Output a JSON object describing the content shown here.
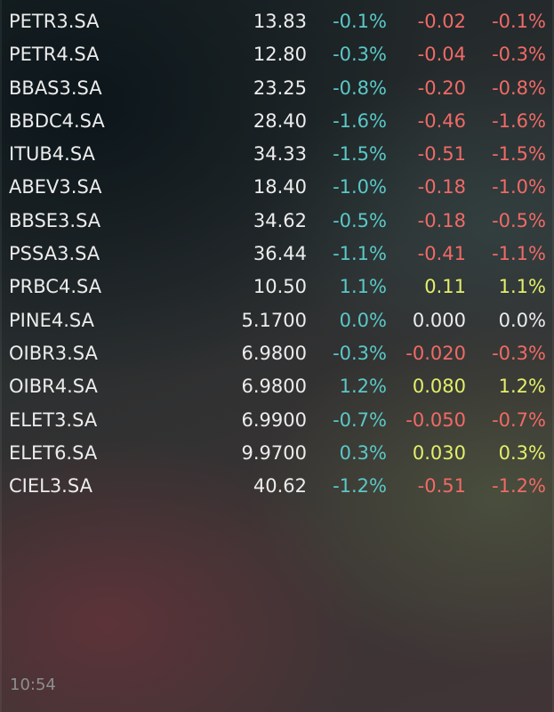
{
  "colors": {
    "teal": "#5ac8c8",
    "red": "#f06a66",
    "yellow": "#e3ef6a",
    "white": "#ececec"
  },
  "rows": [
    {
      "symbol": "PETR3.SA",
      "price": "13.83",
      "pct1": "-0.1%",
      "change": "-0.02",
      "pct2": "-0.1%"
    },
    {
      "symbol": "PETR4.SA",
      "price": "12.80",
      "pct1": "-0.3%",
      "change": "-0.04",
      "pct2": "-0.3%"
    },
    {
      "symbol": "BBAS3.SA",
      "price": "23.25",
      "pct1": "-0.8%",
      "change": "-0.20",
      "pct2": "-0.8%"
    },
    {
      "symbol": "BBDC4.SA",
      "price": "28.40",
      "pct1": "-1.6%",
      "change": "-0.46",
      "pct2": "-1.6%"
    },
    {
      "symbol": "ITUB4.SA",
      "price": "34.33",
      "pct1": "-1.5%",
      "change": "-0.51",
      "pct2": "-1.5%"
    },
    {
      "symbol": "ABEV3.SA",
      "price": "18.40",
      "pct1": "-1.0%",
      "change": "-0.18",
      "pct2": "-1.0%"
    },
    {
      "symbol": "BBSE3.SA",
      "price": "34.62",
      "pct1": "-0.5%",
      "change": "-0.18",
      "pct2": "-0.5%"
    },
    {
      "symbol": "PSSA3.SA",
      "price": "36.44",
      "pct1": "-1.1%",
      "change": "-0.41",
      "pct2": "-1.1%"
    },
    {
      "symbol": "PRBC4.SA",
      "price": "10.50",
      "pct1": "1.1%",
      "change": "0.11",
      "pct2": "1.1%"
    },
    {
      "symbol": "PINE4.SA",
      "price": "5.1700",
      "pct1": "0.0%",
      "change": "0.000",
      "pct2": "0.0%"
    },
    {
      "symbol": "OIBR3.SA",
      "price": "6.9800",
      "pct1": "-0.3%",
      "change": "-0.020",
      "pct2": "-0.3%"
    },
    {
      "symbol": "OIBR4.SA",
      "price": "6.9800",
      "pct1": "1.2%",
      "change": "0.080",
      "pct2": "1.2%"
    },
    {
      "symbol": "ELET3.SA",
      "price": "6.9900",
      "pct1": "-0.7%",
      "change": "-0.050",
      "pct2": "-0.7%"
    },
    {
      "symbol": "ELET6.SA",
      "price": "9.9700",
      "pct1": "0.3%",
      "change": "0.030",
      "pct2": "0.3%"
    },
    {
      "symbol": "CIEL3.SA",
      "price": "40.62",
      "pct1": "-1.2%",
      "change": "-0.51",
      "pct2": "-1.2%"
    }
  ],
  "footer": {
    "time": "10:54"
  }
}
